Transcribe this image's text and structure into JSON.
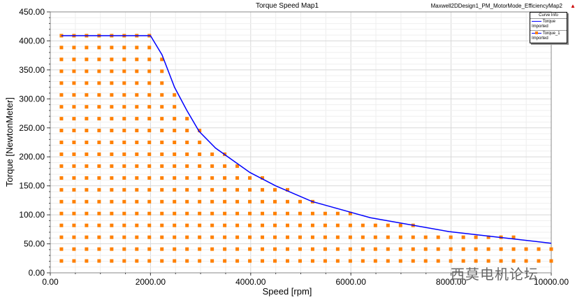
{
  "header": {
    "title": "Torque Speed Map1",
    "design_name": "Maxwell2DDesign1_PM_MotorMode_EfficiencyMap2"
  },
  "legend": {
    "title": "Curve Info",
    "items": [
      {
        "name": "Torque",
        "sub": "Imported",
        "color": "#0000ff"
      },
      {
        "name": "Torque_1",
        "sub": "Imported",
        "color": "#ff8000"
      }
    ]
  },
  "watermark": "西莫电机论坛",
  "chart_data": {
    "type": "line",
    "title": "Torque Speed Map1",
    "xlabel": "Speed [rpm]",
    "ylabel": "Torque [NewtonMeter]",
    "xlim": [
      0,
      10000
    ],
    "ylim": [
      0,
      450
    ],
    "x_ticks": [
      "0.00",
      "2000.00",
      "4000.00",
      "6000.00",
      "8000.00",
      "10000.00"
    ],
    "y_ticks": [
      "0.00",
      "50.00",
      "100.00",
      "150.00",
      "200.00",
      "250.00",
      "300.00",
      "350.00",
      "400.00",
      "450.00"
    ],
    "grid": true,
    "legend_position": "top-right",
    "series": [
      {
        "name": "Torque",
        "color": "#0000ff",
        "points": [
          [
            222,
            409
          ],
          [
            2000,
            409
          ],
          [
            2230,
            376
          ],
          [
            2480,
            320
          ],
          [
            2720,
            281
          ],
          [
            2970,
            244
          ],
          [
            3300,
            215
          ],
          [
            3985,
            173
          ],
          [
            4500,
            150
          ],
          [
            5226,
            123
          ],
          [
            6390,
            95
          ],
          [
            7964,
            71
          ],
          [
            10000,
            51
          ]
        ]
      },
      {
        "name": "Torque_1",
        "color": "#ff8000",
        "grid_speeds_start": 222,
        "grid_speeds_end": 10000,
        "grid_speed_count": 40,
        "torque_levels_max": 409,
        "torque_level_count": 20,
        "note": "operating points on speed x torque grid under the Torque envelope"
      }
    ]
  }
}
